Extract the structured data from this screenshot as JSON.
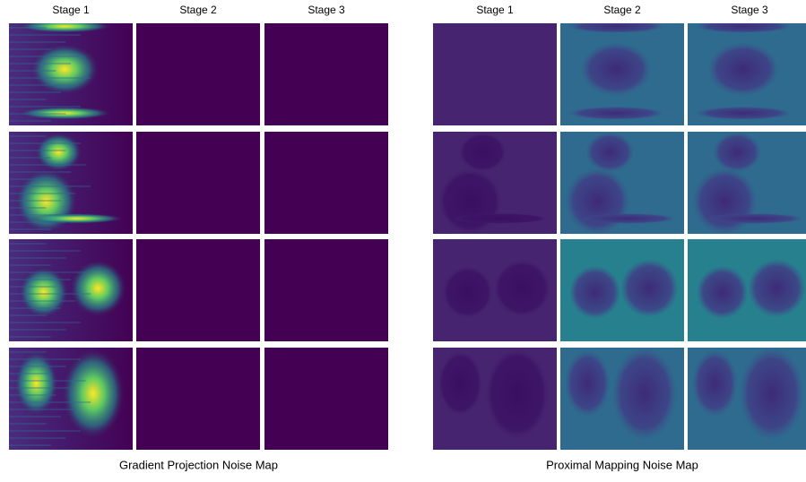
{
  "panels": [
    {
      "columns": [
        "Stage 1",
        "Stage 2",
        "Stage 3"
      ],
      "caption": "Gradient Projection Noise Map"
    },
    {
      "columns": [
        "Stage 1",
        "Stage 2",
        "Stage 3"
      ],
      "caption": "Proximal Mapping Noise Map"
    }
  ]
}
